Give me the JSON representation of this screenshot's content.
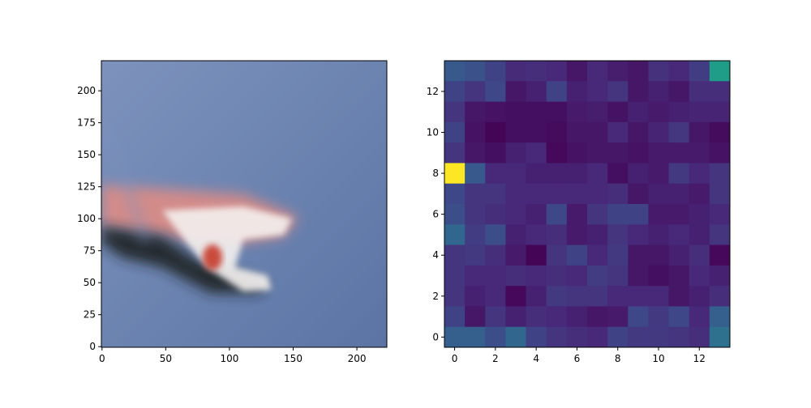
{
  "chart_data": [
    {
      "type": "image",
      "xticks": [
        0,
        50,
        100,
        150,
        200
      ],
      "yticks": [
        0,
        25,
        50,
        75,
        100,
        125,
        150,
        175,
        200
      ],
      "xlim": [
        -0.5,
        223.5
      ],
      "ylim": [
        223.5,
        -0.5
      ],
      "colors": {
        "sky": "#5b74a4",
        "sky_light": "#7d93bd",
        "streak": "#e48c82",
        "white": "#f4f1ef",
        "dark": "#1f2024",
        "red": "#c83a2c"
      }
    },
    {
      "type": "heatmap",
      "colormap": "viridis",
      "vmin": 0,
      "vmax": 1,
      "xticks": [
        0,
        2,
        4,
        6,
        8,
        10,
        12
      ],
      "yticks": [
        0,
        2,
        4,
        6,
        8,
        10,
        12
      ],
      "xlim": [
        -0.5,
        13.5
      ],
      "ylim": [
        13.5,
        -0.5
      ],
      "values": [
        [
          0.28,
          0.25,
          0.2,
          0.12,
          0.13,
          0.11,
          0.06,
          0.11,
          0.08,
          0.06,
          0.14,
          0.11,
          0.18,
          0.55
        ],
        [
          0.2,
          0.15,
          0.22,
          0.06,
          0.09,
          0.2,
          0.09,
          0.11,
          0.15,
          0.06,
          0.09,
          0.06,
          0.13,
          0.13
        ],
        [
          0.15,
          0.06,
          0.05,
          0.04,
          0.04,
          0.04,
          0.07,
          0.08,
          0.05,
          0.09,
          0.07,
          0.09,
          0.1,
          0.1
        ],
        [
          0.2,
          0.05,
          0.01,
          0.04,
          0.04,
          0.03,
          0.06,
          0.06,
          0.11,
          0.06,
          0.1,
          0.16,
          0.06,
          0.03
        ],
        [
          0.15,
          0.06,
          0.04,
          0.09,
          0.11,
          0.02,
          0.05,
          0.06,
          0.06,
          0.05,
          0.07,
          0.07,
          0.07,
          0.05
        ],
        [
          1.0,
          0.28,
          0.11,
          0.11,
          0.09,
          0.09,
          0.09,
          0.11,
          0.04,
          0.09,
          0.07,
          0.17,
          0.11,
          0.15
        ],
        [
          0.22,
          0.15,
          0.15,
          0.11,
          0.11,
          0.11,
          0.11,
          0.11,
          0.13,
          0.06,
          0.09,
          0.09,
          0.07,
          0.15
        ],
        [
          0.24,
          0.15,
          0.13,
          0.11,
          0.09,
          0.22,
          0.07,
          0.15,
          0.2,
          0.2,
          0.07,
          0.07,
          0.09,
          0.11
        ],
        [
          0.33,
          0.18,
          0.24,
          0.09,
          0.11,
          0.13,
          0.07,
          0.09,
          0.15,
          0.11,
          0.09,
          0.11,
          0.09,
          0.15
        ],
        [
          0.15,
          0.17,
          0.13,
          0.07,
          0.01,
          0.15,
          0.2,
          0.11,
          0.17,
          0.06,
          0.06,
          0.09,
          0.13,
          0.02
        ],
        [
          0.15,
          0.11,
          0.11,
          0.13,
          0.11,
          0.13,
          0.11,
          0.18,
          0.15,
          0.06,
          0.04,
          0.06,
          0.11,
          0.09
        ],
        [
          0.15,
          0.09,
          0.11,
          0.02,
          0.09,
          0.17,
          0.15,
          0.15,
          0.11,
          0.11,
          0.11,
          0.06,
          0.09,
          0.13
        ],
        [
          0.2,
          0.06,
          0.15,
          0.09,
          0.13,
          0.11,
          0.09,
          0.06,
          0.07,
          0.22,
          0.17,
          0.22,
          0.11,
          0.3
        ],
        [
          0.3,
          0.3,
          0.24,
          0.33,
          0.2,
          0.15,
          0.13,
          0.11,
          0.2,
          0.17,
          0.17,
          0.15,
          0.13,
          0.37
        ]
      ]
    }
  ]
}
